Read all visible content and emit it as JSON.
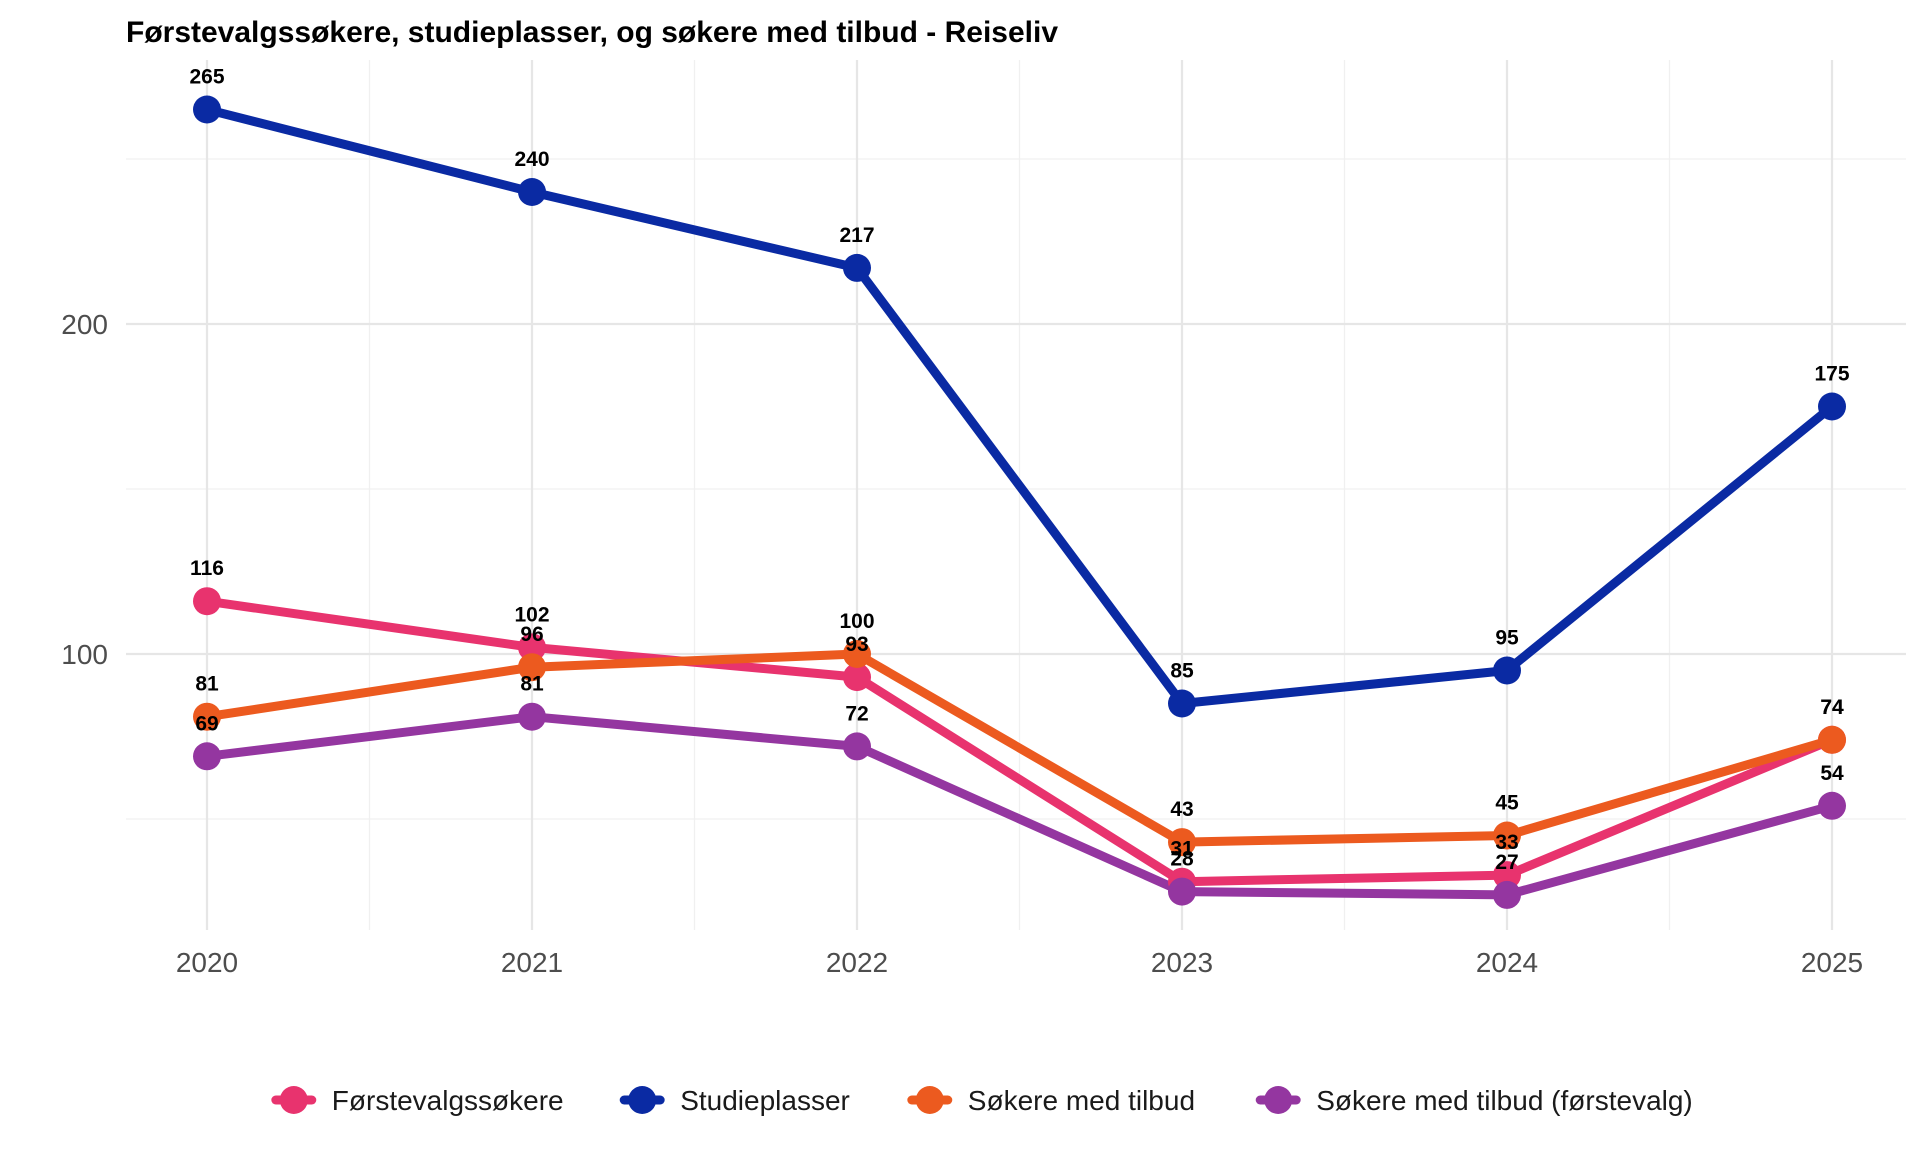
{
  "chart_data": {
    "type": "line",
    "title": "Førstevalgssøkere, studieplasser, og søkere med tilbud - Reiseliv",
    "xlabel": "",
    "ylabel": "",
    "x": [
      "2020",
      "2021",
      "2022",
      "2023",
      "2024",
      "2025"
    ],
    "x_ticks": [
      "2020",
      "2021",
      "2022",
      "2023",
      "2024",
      "2025"
    ],
    "y_ticks": [
      100,
      200
    ],
    "ylim": [
      13,
      282
    ],
    "grid": true,
    "legend_position": "bottom",
    "series": [
      {
        "name": "Studieplasser",
        "color": "#0a2aa3",
        "values": [
          265,
          240,
          217,
          85,
          95,
          175
        ]
      },
      {
        "name": "Førstevalgssøkere",
        "color": "#e8336e",
        "values": [
          116,
          102,
          93,
          31,
          33,
          74
        ]
      },
      {
        "name": "Søkere med tilbud",
        "color": "#ec5a1f",
        "values": [
          81,
          96,
          100,
          43,
          45,
          74
        ]
      },
      {
        "name": "Søkere med tilbud (førstevalg)",
        "color": "#9436a0",
        "values": [
          69,
          81,
          72,
          28,
          27,
          54
        ]
      }
    ],
    "legend_order": [
      "Førstevalgssøkere",
      "Studieplasser",
      "Søkere med tilbud",
      "Søkere med tilbud (førstevalg)"
    ]
  }
}
